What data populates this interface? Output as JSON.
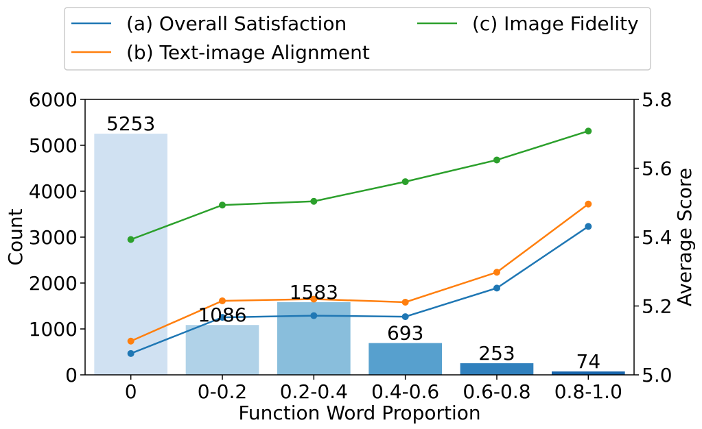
{
  "chart_data": {
    "type": "bar+line",
    "xlabel": "Function Word Proportion",
    "ylabel_left": "Count",
    "ylabel_right": "Average Score",
    "categories": [
      "0",
      "0-0.2",
      "0.2-0.4",
      "0.4-0.6",
      "0.6-0.8",
      "0.8-1.0"
    ],
    "ylim_left": [
      0,
      6000
    ],
    "yticks_left": [
      "0",
      "1000",
      "2000",
      "3000",
      "4000",
      "5000",
      "6000"
    ],
    "ylim_right": [
      5.0,
      5.8
    ],
    "yticks_right": [
      "5.0",
      "5.2",
      "5.4",
      "5.6",
      "5.8"
    ],
    "bars": {
      "values": [
        5253,
        1086,
        1583,
        693,
        253,
        74
      ],
      "labels": [
        "5253",
        "1086",
        "1583",
        "693",
        "253",
        "74"
      ],
      "colors": [
        "#d0e1f2",
        "#b0d2e8",
        "#89bedc",
        "#57a0ce",
        "#3080bd",
        "#1764ab"
      ]
    },
    "series": [
      {
        "name": "(a) Overall Satisfaction",
        "color": "#1f77b4",
        "values": [
          5.062,
          5.167,
          5.172,
          5.169,
          5.252,
          5.431
        ]
      },
      {
        "name": "(b) Text-image Alignment",
        "color": "#ff7f0e",
        "values": [
          5.098,
          5.215,
          5.22,
          5.211,
          5.298,
          5.496
        ]
      },
      {
        "name": "(c) Image Fidelity",
        "color": "#2ca02c",
        "values": [
          5.393,
          5.493,
          5.504,
          5.561,
          5.624,
          5.708
        ]
      }
    ],
    "grid": false,
    "legend_position": "top"
  }
}
